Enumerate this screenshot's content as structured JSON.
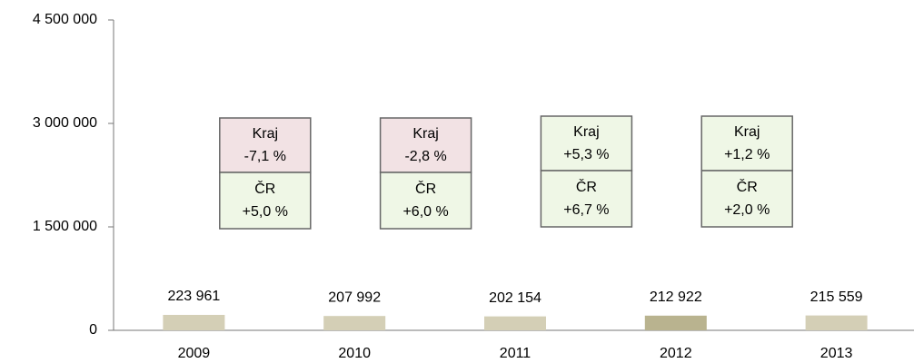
{
  "chart_data": {
    "type": "bar",
    "categories": [
      "2009",
      "2010",
      "2011",
      "2012",
      "2013"
    ],
    "values": [
      223961,
      207992,
      202154,
      212922,
      215559
    ],
    "value_labels": [
      "223 961",
      "207 992",
      "202 154",
      "212 922",
      "215 559"
    ],
    "colors": [
      "#d4cfb6",
      "#d4cfb6",
      "#d4cfb6",
      "#b9b38f",
      "#d4cfb6"
    ],
    "ylim": [
      0,
      4500000
    ],
    "yticks": [
      0,
      {
        "value": 1500000,
        "label": "1 500 000"
      },
      {
        "value": 3000000,
        "label": "3 000 000"
      },
      {
        "value": 4500000,
        "label": "4 500 000"
      }
    ],
    "grid": false,
    "annotations": [
      {
        "kraj": "Kraj",
        "kraj_change": "-7,1 %",
        "kraj_color": "#f2e2e4",
        "cr": "ČR",
        "cr_change": "+5,0 %",
        "cr_color": "#eff7e6"
      },
      {
        "kraj": "Kraj",
        "kraj_change": "-2,8 %",
        "kraj_color": "#f2e2e4",
        "cr": "ČR",
        "cr_change": "+6,0 %",
        "cr_color": "#eff7e6"
      },
      {
        "kraj": "Kraj",
        "kraj_change": "+5,3 %",
        "kraj_color": "#eff7e6",
        "cr": "ČR",
        "cr_change": "+6,7 %",
        "cr_color": "#eff7e6"
      },
      {
        "kraj": "Kraj",
        "kraj_change": "+1,2 %",
        "kraj_color": "#eff7e6",
        "cr": "ČR",
        "cr_change": "+2,0 %",
        "cr_color": "#eff7e6"
      }
    ]
  }
}
